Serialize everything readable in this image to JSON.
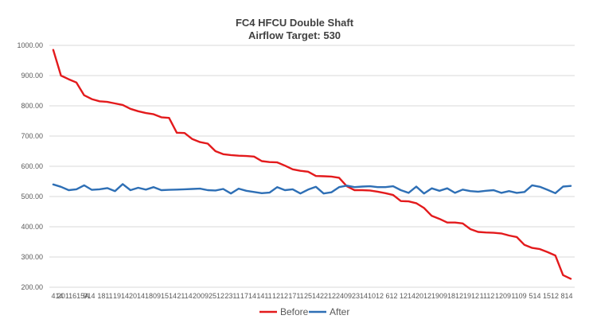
{
  "chart_data": {
    "type": "line",
    "title": "FC4 HFCU Double Shaft",
    "subtitle": "Airflow Target: 530",
    "xlabel": "",
    "ylabel": "",
    "ylim": [
      200,
      1000
    ],
    "y_ticks": [
      "200.00",
      "300.00",
      "400.00",
      "500.00",
      "600.00",
      "700.00",
      "800.00",
      "900.00",
      "1000.00"
    ],
    "x_tick_labels": [
      "414",
      "2011615A",
      "914",
      "1811",
      "1914",
      "2014",
      "1809",
      "1514",
      "2114",
      "2009",
      "2512",
      "2311",
      "1714",
      "1411",
      "1212",
      "1711",
      "2514",
      "2212",
      "2409",
      "2314",
      "1012",
      "612",
      "1214",
      "2012",
      "1909",
      "1812",
      "1912",
      "1112",
      "1209",
      "1109",
      "514",
      "1512",
      "814"
    ],
    "grid": true,
    "legend_position": "bottom",
    "colors": {
      "Before": "#e31a1c",
      "After": "#2e6fb5",
      "grid": "#d9d9d9"
    },
    "series": [
      {
        "name": "Before",
        "values": [
          985,
          900,
          888,
          877,
          835,
          822,
          815,
          813,
          808,
          803,
          790,
          782,
          776,
          772,
          762,
          760,
          711,
          710,
          690,
          680,
          675,
          650,
          640,
          637,
          635,
          634,
          632,
          617,
          614,
          613,
          602,
          590,
          585,
          582,
          568,
          567,
          566,
          562,
          534,
          521,
          521,
          520,
          516,
          511,
          505,
          485,
          484,
          478,
          462,
          436,
          426,
          414,
          414,
          411,
          392,
          383,
          381,
          380,
          378,
          371,
          366,
          340,
          330,
          326,
          316,
          305,
          240,
          228
        ]
      },
      {
        "name": "After",
        "values": [
          540,
          532,
          521,
          524,
          537,
          522,
          524,
          528,
          518,
          541,
          521,
          529,
          523,
          531,
          521,
          522,
          523,
          524,
          525,
          526,
          521,
          520,
          525,
          510,
          526,
          519,
          515,
          511,
          513,
          531,
          521,
          524,
          510,
          523,
          532,
          510,
          514,
          531,
          536,
          531,
          533,
          534,
          531,
          531,
          534,
          521,
          512,
          533,
          510,
          527,
          519,
          527,
          512,
          523,
          518,
          516,
          519,
          521,
          512,
          518,
          512,
          515,
          537,
          532,
          522,
          511,
          533,
          535
        ]
      }
    ]
  }
}
